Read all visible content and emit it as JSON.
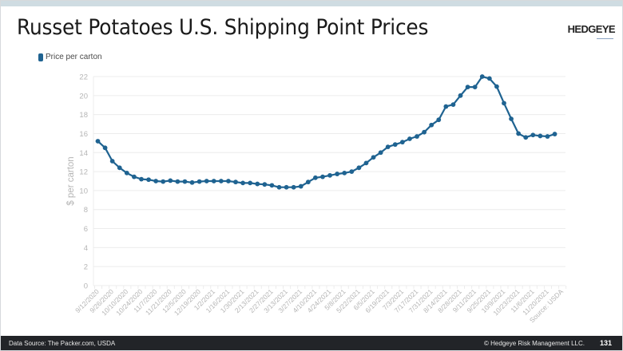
{
  "slide": {
    "title": "Russet Potatoes U.S. Shipping Point Prices",
    "logo": "HEDGEYE",
    "footer": {
      "source": "Data Source: The Packer.com, USDA",
      "copyright": "© Hedgeye Risk Management LLC.",
      "page_number": "131"
    }
  },
  "colors": {
    "series": "#1f6391",
    "grid": "#ececec",
    "axis_text": "#b5b5b5",
    "footer_bg": "#222428"
  },
  "chart_data": {
    "type": "line",
    "title": "Russet Potatoes U.S. Shipping Point Prices",
    "xlabel": "",
    "ylabel": "$ per carton",
    "ylim": [
      0,
      22
    ],
    "yticks": [
      0,
      2,
      4,
      6,
      8,
      10,
      12,
      14,
      16,
      18,
      20,
      22
    ],
    "grid": true,
    "legend_position": "top-left",
    "x_tick_labels": [
      "9/12/2020",
      "9/26/2020",
      "10/10/2020",
      "10/24/2020",
      "11/7/2020",
      "11/21/2020",
      "12/5/2020",
      "12/19/2020",
      "1/2/2021",
      "1/16/2021",
      "1/30/2021",
      "2/13/2021",
      "2/27/2021",
      "3/13/2021",
      "3/27/2021",
      "4/10/2021",
      "4/24/2021",
      "5/8/2021",
      "5/22/2021",
      "6/5/2021",
      "6/19/2021",
      "7/3/2021",
      "7/17/2021",
      "7/31/2021",
      "8/14/2021",
      "8/28/2021",
      "9/11/2021",
      "9/25/2021",
      "10/9/2021",
      "10/23/2021",
      "11/6/2021",
      "11/20/2021",
      "Source: USDA"
    ],
    "x": [
      "9/12/2020",
      "9/19/2020",
      "9/26/2020",
      "10/3/2020",
      "10/10/2020",
      "10/17/2020",
      "10/24/2020",
      "10/31/2020",
      "11/7/2020",
      "11/14/2020",
      "11/21/2020",
      "11/28/2020",
      "12/5/2020",
      "12/12/2020",
      "12/19/2020",
      "12/26/2020",
      "1/2/2021",
      "1/9/2021",
      "1/16/2021",
      "1/23/2021",
      "1/30/2021",
      "2/6/2021",
      "2/13/2021",
      "2/20/2021",
      "2/27/2021",
      "3/6/2021",
      "3/13/2021",
      "3/20/2021",
      "3/27/2021",
      "4/3/2021",
      "4/10/2021",
      "4/17/2021",
      "4/24/2021",
      "5/1/2021",
      "5/8/2021",
      "5/15/2021",
      "5/22/2021",
      "5/29/2021",
      "6/5/2021",
      "6/12/2021",
      "6/19/2021",
      "6/26/2021",
      "7/3/2021",
      "7/10/2021",
      "7/17/2021",
      "7/24/2021",
      "7/31/2021",
      "8/7/2021",
      "8/14/2021",
      "8/21/2021",
      "8/28/2021",
      "9/4/2021",
      "9/11/2021",
      "9/18/2021",
      "9/25/2021",
      "10/2/2021",
      "10/9/2021",
      "10/16/2021",
      "10/23/2021",
      "10/30/2021",
      "11/6/2021",
      "11/13/2021",
      "11/20/2021",
      "11/27/2021"
    ],
    "series": [
      {
        "name": "Price per carton",
        "values": [
          15.2,
          14.5,
          13.1,
          12.4,
          11.85,
          11.45,
          11.2,
          11.15,
          11.0,
          10.95,
          11.05,
          10.95,
          10.95,
          10.85,
          10.95,
          11.0,
          11.0,
          11.0,
          11.0,
          10.9,
          10.8,
          10.8,
          10.7,
          10.65,
          10.55,
          10.35,
          10.35,
          10.35,
          10.45,
          10.9,
          11.35,
          11.45,
          11.6,
          11.75,
          11.85,
          12.0,
          12.4,
          12.9,
          13.5,
          14.0,
          14.6,
          14.85,
          15.1,
          15.45,
          15.7,
          16.15,
          16.9,
          17.45,
          18.85,
          19.05,
          20.0,
          20.9,
          20.9,
          22.0,
          21.8,
          20.95,
          19.2,
          17.55,
          16.0,
          15.6,
          15.85,
          15.75,
          15.7,
          15.95
        ]
      }
    ]
  }
}
